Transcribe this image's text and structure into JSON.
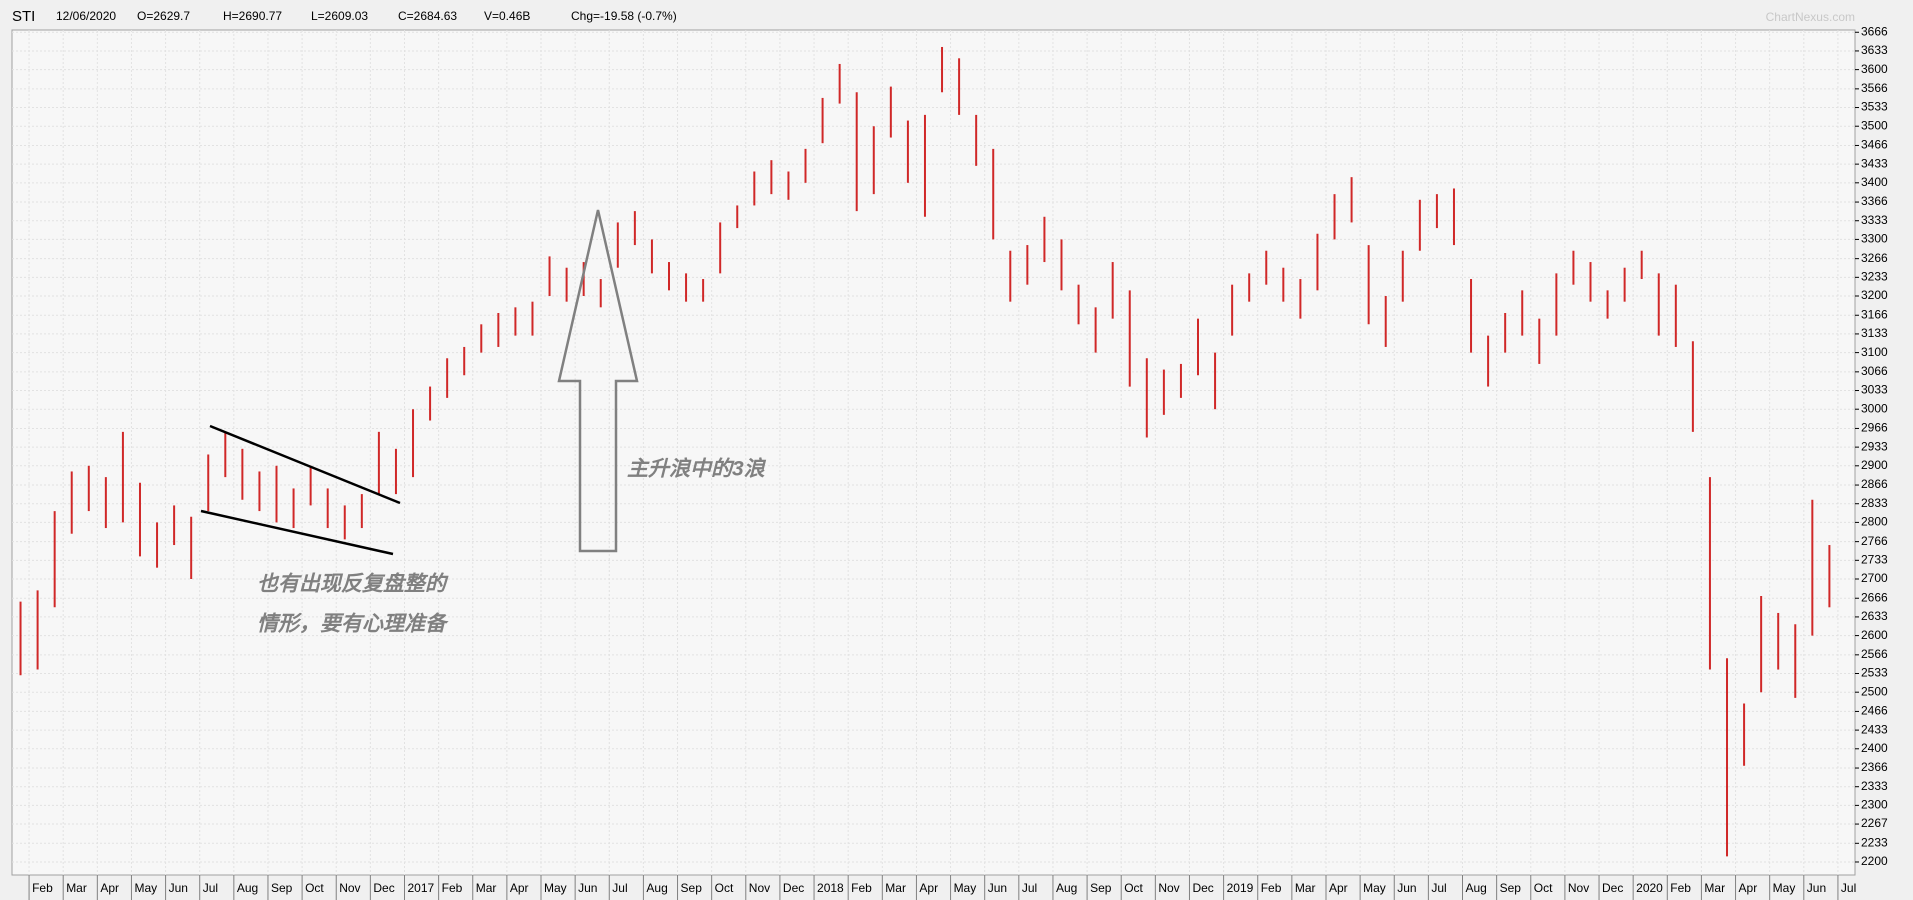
{
  "chart_data": {
    "type": "ohlc",
    "title": "STI",
    "header": [
      "12/06/2020",
      "O=2629.7",
      "H=2690.77",
      "L=2609.03",
      "C=2684.63",
      "V=0.46B",
      "Chg=-19.58 (-0.7%)"
    ],
    "watermark": "ChartNexus.com",
    "annotations": [
      "也有出现反复盘整的",
      "情形，要有心理准备",
      "主升浪中的3浪"
    ],
    "color": "#d02828",
    "grid": true,
    "ylim": [
      2177,
      3670
    ],
    "yticks": [
      2200,
      2233,
      2267,
      2300,
      2333,
      2366,
      2400,
      2433,
      2466,
      2500,
      2533,
      2566,
      2600,
      2633,
      2666,
      2700,
      2733,
      2766,
      2800,
      2833,
      2866,
      2900,
      2933,
      2966,
      3000,
      3033,
      3066,
      3100,
      3133,
      3166,
      3200,
      3233,
      3266,
      3300,
      3333,
      3366,
      3400,
      3433,
      3466,
      3500,
      3533,
      3566,
      3600,
      3633,
      3666
    ],
    "categories": [
      null,
      "Feb",
      null,
      "Mar",
      null,
      "Apr",
      null,
      "May",
      null,
      "Jun",
      null,
      "Jul",
      null,
      "Aug",
      null,
      "Sep",
      null,
      "Oct",
      null,
      "Nov",
      null,
      "Dec",
      null,
      "2017",
      null,
      "Feb",
      null,
      "Mar",
      null,
      "Apr",
      null,
      "May",
      null,
      "Jun",
      null,
      "Jul",
      null,
      "Aug",
      null,
      "Sep",
      null,
      "Oct",
      null,
      "Nov",
      null,
      "Dec",
      null,
      "2018",
      null,
      "Feb",
      null,
      "Mar",
      null,
      "Apr",
      null,
      "May",
      null,
      "Jun",
      null,
      "Jul",
      null,
      "Aug",
      null,
      "Sep",
      null,
      "Oct",
      null,
      "Nov",
      null,
      "Dec",
      null,
      "2019",
      null,
      "Feb",
      null,
      "Mar",
      null,
      "Apr",
      null,
      "May",
      null,
      "Jun",
      null,
      "Jul",
      null,
      "Aug",
      null,
      "Sep",
      null,
      "Oct",
      null,
      "Nov",
      null,
      "Dec",
      null,
      "2020",
      null,
      "Feb",
      null,
      "Mar",
      null,
      "Apr",
      null,
      "May",
      null,
      "Jun",
      null,
      "Jul"
    ],
    "high": [
      2660,
      2680,
      2820,
      2890,
      2900,
      2880,
      2960,
      2870,
      2800,
      2830,
      2810,
      2920,
      2960,
      2930,
      2890,
      2900,
      2860,
      2900,
      2860,
      2830,
      2850,
      2960,
      2930,
      3000,
      3040,
      3090,
      3110,
      3150,
      3170,
      3180,
      3190,
      3270,
      3250,
      3260,
      3230,
      3330,
      3350,
      3300,
      3260,
      3240,
      3230,
      3330,
      3360,
      3420,
      3440,
      3420,
      3460,
      3550,
      3610,
      3560,
      3500,
      3570,
      3510,
      3520,
      3640,
      3620,
      3520,
      3460,
      3280,
      3290,
      3340,
      3300,
      3220,
      3180,
      3260,
      3210,
      3090,
      3070,
      3080,
      3160,
      3100,
      3220,
      3240,
      3280,
      3250,
      3230,
      3310,
      3380,
      3410,
      3290,
      3200,
      3280,
      3370,
      3380,
      3390,
      3230,
      3130,
      3170,
      3210,
      3160,
      3240,
      3280,
      3260,
      3210,
      3250,
      3280,
      3240,
      3220,
      3120,
      2880,
      2560,
      2480,
      2670,
      2640,
      2620,
      2840,
      2760,
      null
    ],
    "low": [
      2530,
      2540,
      2650,
      2780,
      2820,
      2790,
      2800,
      2740,
      2720,
      2760,
      2700,
      2820,
      2880,
      2840,
      2820,
      2800,
      2790,
      2830,
      2790,
      2770,
      2790,
      2850,
      2850,
      2880,
      2980,
      3020,
      3060,
      3100,
      3110,
      3130,
      3130,
      3200,
      3190,
      3200,
      3180,
      3250,
      3290,
      3240,
      3210,
      3190,
      3190,
      3240,
      3320,
      3360,
      3380,
      3370,
      3400,
      3470,
      3540,
      3350,
      3380,
      3480,
      3400,
      3340,
      3560,
      3520,
      3430,
      3300,
      3190,
      3220,
      3260,
      3210,
      3150,
      3100,
      3160,
      3040,
      2950,
      2990,
      3020,
      3060,
      3000,
      3130,
      3190,
      3220,
      3190,
      3160,
      3210,
      3300,
      3330,
      3150,
      3110,
      3190,
      3280,
      3320,
      3290,
      3100,
      3040,
      3100,
      3130,
      3080,
      3130,
      3220,
      3190,
      3160,
      3190,
      3230,
      3130,
      3110,
      2960,
      2540,
      2210,
      2370,
      2500,
      2540,
      2490,
      2600,
      2650,
      null
    ]
  }
}
